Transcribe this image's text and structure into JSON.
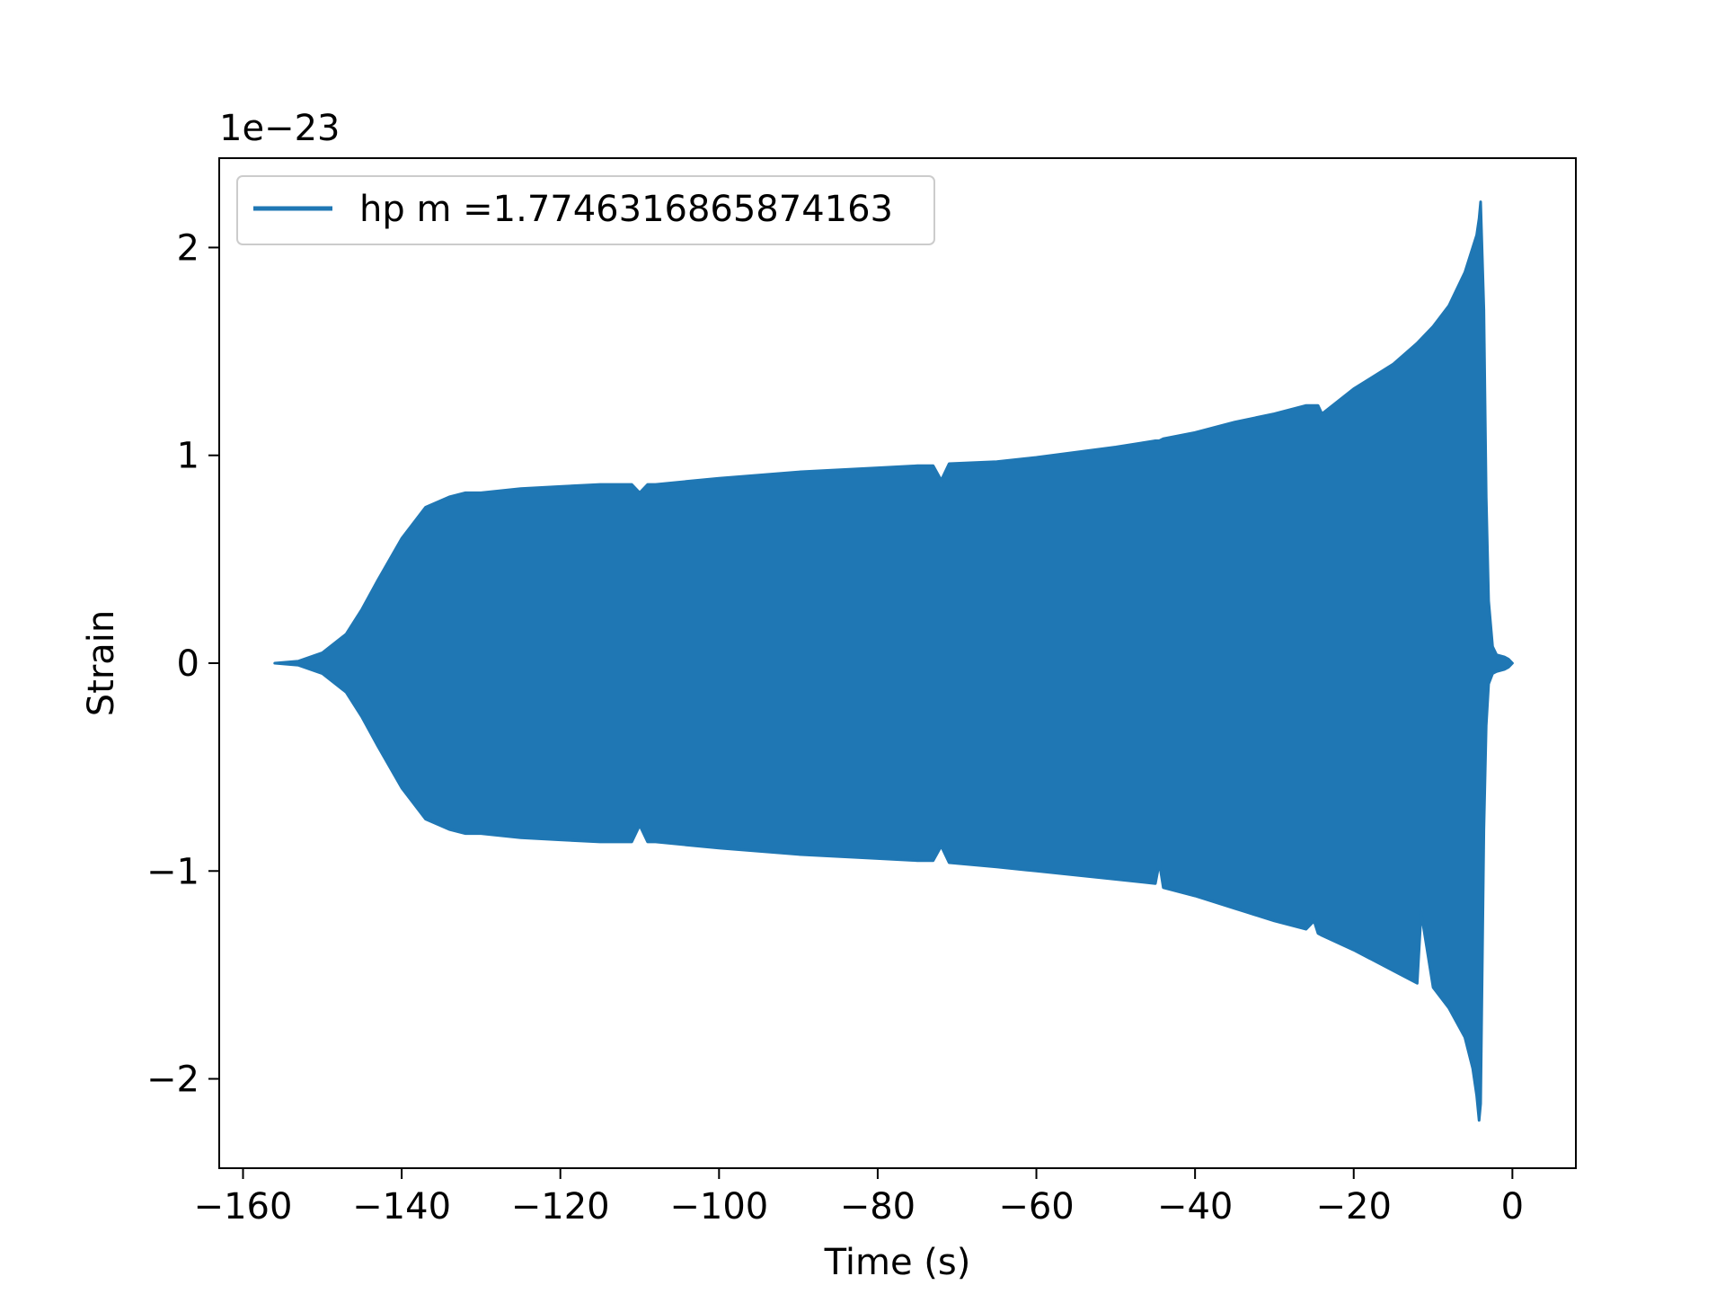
{
  "chart_data": {
    "type": "area",
    "xlabel": "Time (s)",
    "ylabel": "Strain",
    "y_offset_label": "1e−23",
    "y_scale_exponent": -23,
    "xlim": [
      -163,
      8
    ],
    "ylim": [
      -2.43,
      2.43
    ],
    "x_ticks": [
      -160,
      -140,
      -120,
      -100,
      -80,
      -60,
      -40,
      -20,
      0
    ],
    "x_tick_labels": [
      "−160",
      "−140",
      "−120",
      "−100",
      "−80",
      "−60",
      "−40",
      "−20",
      "0"
    ],
    "y_ticks": [
      -2,
      -1,
      0,
      1,
      2
    ],
    "y_tick_labels": [
      "−2",
      "−1",
      "0",
      "1",
      "2"
    ],
    "grid": false,
    "legend_position": "top-left",
    "series": [
      {
        "name": "hp m =1.7746316865874163",
        "color": "#1f77b4",
        "x": [
          -156,
          -153,
          -150,
          -147,
          -145,
          -143,
          -140,
          -137,
          -134,
          -132,
          -130,
          -125,
          -120,
          -115,
          -111,
          -110,
          -109,
          -108,
          -100,
          -90,
          -80,
          -75,
          -73,
          -72,
          -71,
          -65,
          -60,
          -50,
          -45,
          -44.5,
          -44,
          -40,
          -35,
          -30,
          -26,
          -25,
          -24.5,
          -24,
          -20,
          -15,
          -12,
          -11.5,
          -10,
          -8,
          -6,
          -5,
          -4.5,
          -4.2,
          -4,
          -3.6,
          -3.3,
          -3,
          -2.5,
          -2,
          -1,
          -0.5,
          0
        ],
        "upper": [
          0.0,
          0.01,
          0.05,
          0.14,
          0.26,
          0.4,
          0.6,
          0.75,
          0.8,
          0.82,
          0.82,
          0.84,
          0.85,
          0.86,
          0.86,
          0.82,
          0.86,
          0.86,
          0.89,
          0.92,
          0.94,
          0.95,
          0.95,
          0.88,
          0.96,
          0.97,
          0.99,
          1.04,
          1.07,
          1.07,
          1.08,
          1.11,
          1.16,
          1.2,
          1.24,
          1.24,
          1.24,
          1.2,
          1.32,
          1.44,
          1.54,
          1.56,
          1.62,
          1.72,
          1.88,
          2.0,
          2.06,
          2.14,
          2.22,
          1.7,
          0.8,
          0.3,
          0.08,
          0.04,
          0.03,
          0.02,
          0.0
        ],
        "lower": [
          0.0,
          -0.01,
          -0.05,
          -0.14,
          -0.26,
          -0.4,
          -0.6,
          -0.75,
          -0.8,
          -0.82,
          -0.82,
          -0.84,
          -0.85,
          -0.86,
          -0.86,
          -0.78,
          -0.86,
          -0.86,
          -0.89,
          -0.92,
          -0.94,
          -0.95,
          -0.95,
          -0.88,
          -0.96,
          -0.98,
          -1.0,
          -1.04,
          -1.06,
          -0.96,
          -1.08,
          -1.12,
          -1.18,
          -1.24,
          -1.28,
          -1.24,
          -1.3,
          -1.31,
          -1.38,
          -1.48,
          -1.54,
          -1.2,
          -1.56,
          -1.66,
          -1.8,
          -1.95,
          -2.08,
          -2.2,
          -2.12,
          -0.8,
          -0.3,
          -0.1,
          -0.05,
          -0.04,
          -0.03,
          -0.02,
          0.0
        ]
      }
    ]
  }
}
